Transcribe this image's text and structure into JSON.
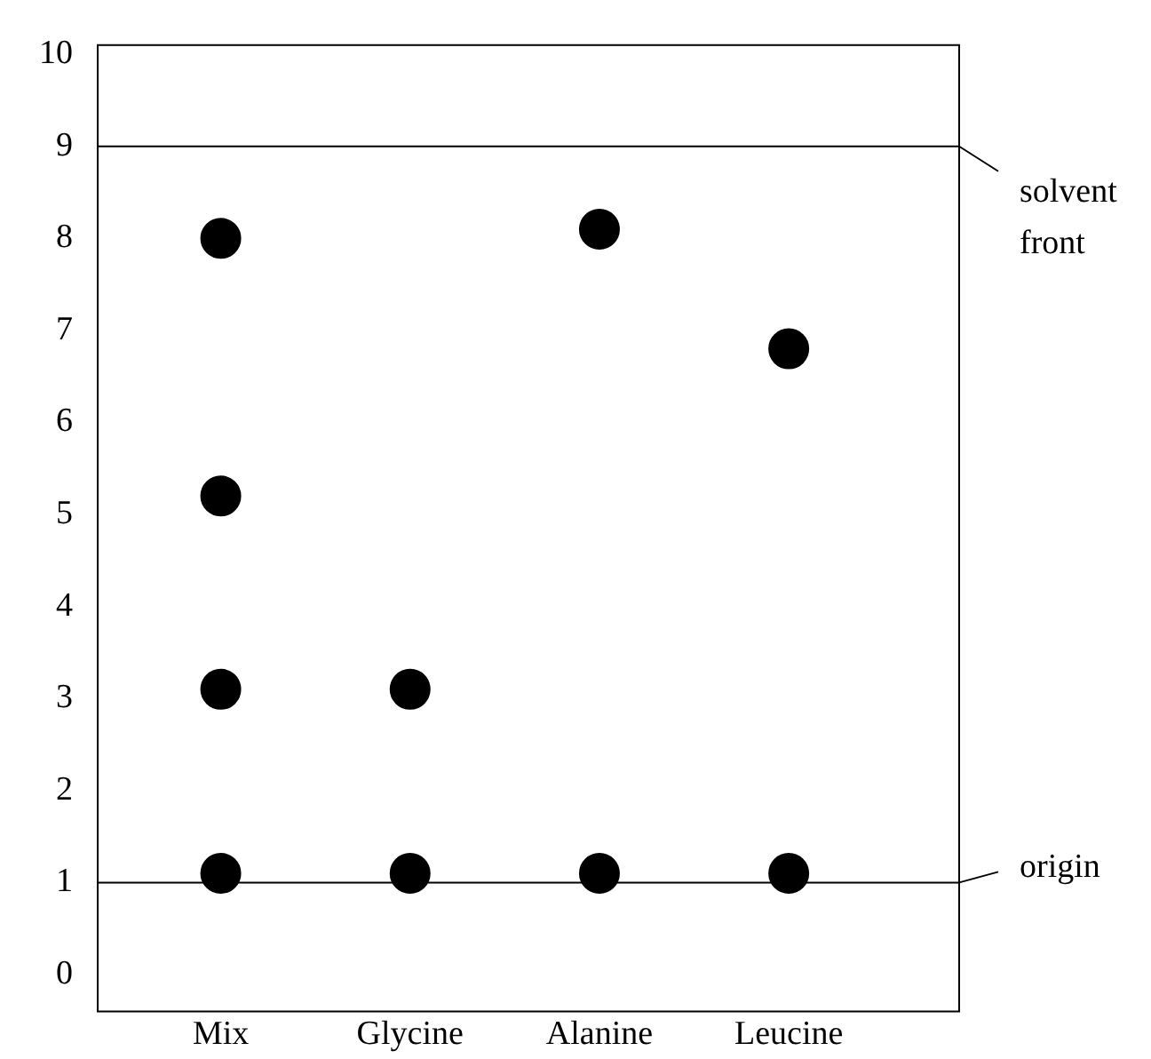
{
  "chart_data": {
    "type": "scatter",
    "categories": [
      "Mix",
      "Glycine",
      "Alanine",
      "Leucine"
    ],
    "series": [
      {
        "color": "#000000",
        "x": [
          "Mix",
          "Mix",
          "Mix",
          "Mix",
          "Glycine",
          "Glycine",
          "Alanine",
          "Alanine",
          "Leucine",
          "Leucine"
        ],
        "values": [
          8.0,
          5.2,
          3.1,
          1.1,
          3.1,
          1.1,
          8.1,
          1.1,
          6.8,
          1.1
        ]
      }
    ],
    "ylim": [
      -0.4,
      10.1
    ],
    "yticks": [
      0,
      1,
      2,
      3,
      4,
      5,
      6,
      7,
      8,
      9,
      10
    ],
    "grid": false,
    "legend": false,
    "marker": "circle",
    "ref_lines": [
      {
        "axis": "y",
        "value": 9,
        "label": "solvent front",
        "color": "#000000"
      },
      {
        "axis": "y",
        "value": 1,
        "label": "origin",
        "color": "#000000"
      }
    ]
  }
}
